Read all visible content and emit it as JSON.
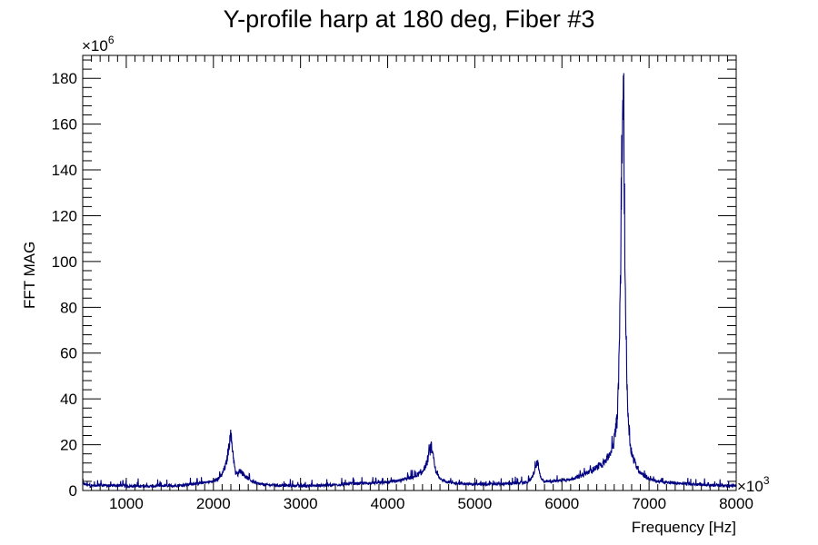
{
  "chart_data": {
    "type": "line",
    "title": "Y-profile harp at 180 deg, Fiber #3",
    "xlabel": "Frequency [Hz]",
    "ylabel": "FFT MAG",
    "xlim": [
      500,
      8000
    ],
    "ylim": [
      0,
      190
    ],
    "x_exponent_label": "×10",
    "x_exponent_power": "3",
    "y_exponent_label": "×10",
    "y_exponent_power": "6",
    "x_tick_values": [
      1000,
      2000,
      3000,
      4000,
      5000,
      6000,
      7000,
      8000
    ],
    "x_tick_labels": [
      "1000",
      "2000",
      "3000",
      "4000",
      "5000",
      "6000",
      "7000",
      "8000"
    ],
    "y_tick_values": [
      0,
      20,
      40,
      60,
      80,
      100,
      120,
      140,
      160,
      180
    ],
    "y_tick_labels": [
      "0",
      "20",
      "40",
      "60",
      "80",
      "100",
      "120",
      "140",
      "160",
      "180"
    ],
    "grid": false,
    "line_color": "#000080",
    "series": [
      {
        "x": [
          500,
          600,
          700,
          800,
          900,
          1000,
          1200,
          1400,
          1600,
          1800,
          1900,
          2000,
          2050,
          2100,
          2150,
          2180,
          2200,
          2220,
          2250,
          2280,
          2300,
          2350,
          2400,
          2500,
          2600,
          2800,
          3000,
          3200,
          3400,
          3600,
          3800,
          4000,
          4100,
          4200,
          4300,
          4350,
          4400,
          4450,
          4480,
          4500,
          4520,
          4550,
          4600,
          4700,
          4800,
          5000,
          5200,
          5400,
          5600,
          5650,
          5700,
          5720,
          5740,
          5760,
          5800,
          5900,
          6000,
          6100,
          6200,
          6300,
          6400,
          6500,
          6550,
          6600,
          6630,
          6650,
          6670,
          6690,
          6700,
          6710,
          6730,
          6750,
          6780,
          6800,
          6850,
          6900,
          7000,
          7100,
          7200,
          7400,
          7600,
          7800,
          8000
        ],
        "y": [
          3,
          2,
          2.5,
          2,
          2.2,
          2,
          1.8,
          2,
          2.2,
          3,
          3.5,
          4,
          5,
          7,
          12,
          20,
          25,
          18,
          8,
          7,
          9,
          7,
          5,
          3,
          2.5,
          2.2,
          2,
          2.2,
          2.5,
          3,
          3.2,
          3.5,
          4,
          5,
          6,
          7,
          8,
          12,
          17,
          19,
          15,
          8,
          5,
          3.5,
          3,
          2.8,
          2.8,
          3,
          3.5,
          5,
          10,
          13,
          8,
          5,
          4,
          4,
          4.5,
          5,
          6,
          8,
          10,
          13,
          16,
          22,
          30,
          45,
          90,
          150,
          182,
          160,
          80,
          40,
          22,
          16,
          11,
          8,
          5,
          4,
          3.5,
          3,
          2.5,
          2.2,
          2
        ]
      }
    ]
  }
}
